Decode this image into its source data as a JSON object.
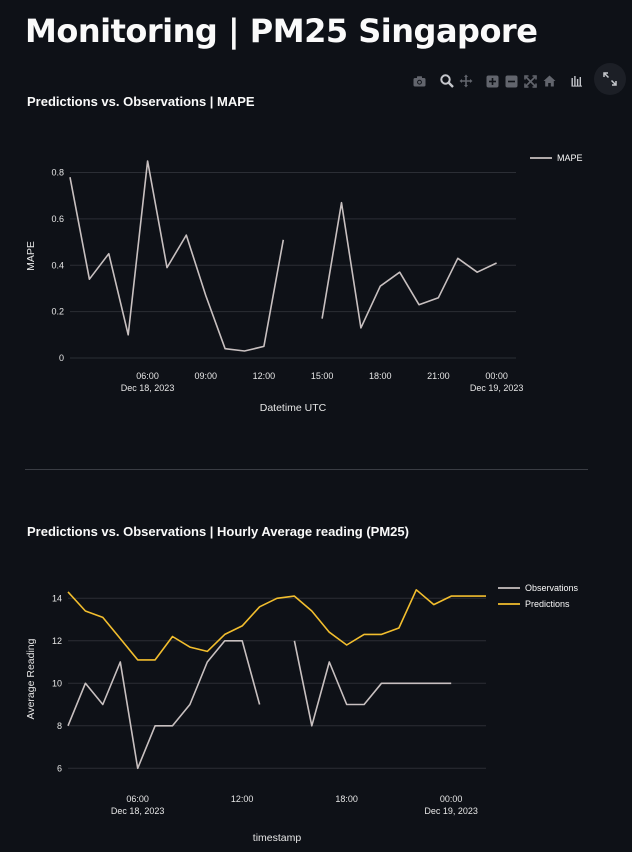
{
  "page": {
    "title": "Monitoring | PM25 Singapore"
  },
  "toolbar": {
    "icons": [
      "camera-icon",
      "zoom-icon",
      "pan-icon",
      "zoom-in-icon",
      "zoom-out-icon",
      "autoscale-icon",
      "reset-home-icon",
      "spikelines-icon"
    ],
    "expand_icon": "fullscreen-icon"
  },
  "chart_data": [
    {
      "type": "line",
      "title": "Predictions vs. Observations | MAPE",
      "xlabel": "Datetime UTC",
      "ylabel": "MAPE",
      "x_start": "2023-12-18 02:00",
      "x_ticks": [
        "06:00",
        "09:00",
        "12:00",
        "15:00",
        "18:00",
        "21:00",
        "00:00"
      ],
      "x_date_labels": [
        "Dec 18, 2023",
        "Dec 19, 2023"
      ],
      "y_ticks": [
        "0",
        "0.2",
        "0.4",
        "0.6",
        "0.8"
      ],
      "ylim": [
        0,
        0.88
      ],
      "grid": true,
      "legend": "top-right",
      "series": [
        {
          "name": "MAPE",
          "color": "#c8c0c0",
          "x": [
            "02:00",
            "03:00",
            "04:00",
            "05:00",
            "06:00",
            "07:00",
            "08:00",
            "09:00",
            "10:00",
            "11:00",
            "12:00",
            "13:00",
            "14:00",
            "15:00",
            "16:00",
            "17:00",
            "18:00",
            "19:00",
            "20:00",
            "21:00",
            "22:00",
            "23:00",
            "00:00",
            "01:00"
          ],
          "values": [
            0.78,
            0.34,
            0.45,
            0.1,
            0.85,
            0.39,
            0.53,
            0.27,
            0.04,
            0.03,
            0.05,
            0.51,
            null,
            0.17,
            0.67,
            0.13,
            0.31,
            0.37,
            0.23,
            0.26,
            0.43,
            0.37,
            0.41,
            null
          ]
        }
      ]
    },
    {
      "type": "line",
      "title": "Predictions vs. Observations | Hourly Average reading (PM25)",
      "xlabel": "timestamp",
      "ylabel": "Average Reading",
      "x_ticks": [
        "06:00",
        "12:00",
        "18:00",
        "00:00"
      ],
      "x_date_labels": [
        "Dec 18, 2023",
        "Dec 19, 2023"
      ],
      "y_ticks": [
        "6",
        "8",
        "10",
        "12",
        "14"
      ],
      "ylim": [
        5.4,
        15
      ],
      "grid": true,
      "legend": "top-right",
      "series": [
        {
          "name": "Observations",
          "color": "#c8c0c0",
          "x": [
            "02:00",
            "03:00",
            "04:00",
            "05:00",
            "06:00",
            "07:00",
            "08:00",
            "09:00",
            "10:00",
            "11:00",
            "12:00",
            "13:00",
            "14:00",
            "15:00",
            "16:00",
            "17:00",
            "18:00",
            "19:00",
            "20:00",
            "21:00",
            "22:00",
            "23:00",
            "00:00",
            "01:00",
            "02:00"
          ],
          "values": [
            8,
            10,
            9,
            11,
            6,
            8,
            8,
            9,
            11,
            12,
            12,
            9,
            null,
            12,
            8,
            11,
            9,
            9,
            10,
            10,
            10,
            10,
            10,
            null,
            null
          ]
        },
        {
          "name": "Predictions",
          "color": "#f2be2e",
          "x": [
            "02:00",
            "03:00",
            "04:00",
            "05:00",
            "06:00",
            "07:00",
            "08:00",
            "09:00",
            "10:00",
            "11:00",
            "12:00",
            "13:00",
            "14:00",
            "15:00",
            "16:00",
            "17:00",
            "18:00",
            "19:00",
            "20:00",
            "21:00",
            "22:00",
            "23:00",
            "00:00",
            "01:00",
            "02:00"
          ],
          "values": [
            14.3,
            13.4,
            13.1,
            12.1,
            11.1,
            11.1,
            12.2,
            11.7,
            11.5,
            12.3,
            12.7,
            13.6,
            14,
            14.1,
            13.4,
            12.4,
            11.8,
            12.3,
            12.3,
            12.6,
            14.4,
            13.7,
            14.1,
            14.1,
            14.1
          ]
        }
      ]
    }
  ]
}
